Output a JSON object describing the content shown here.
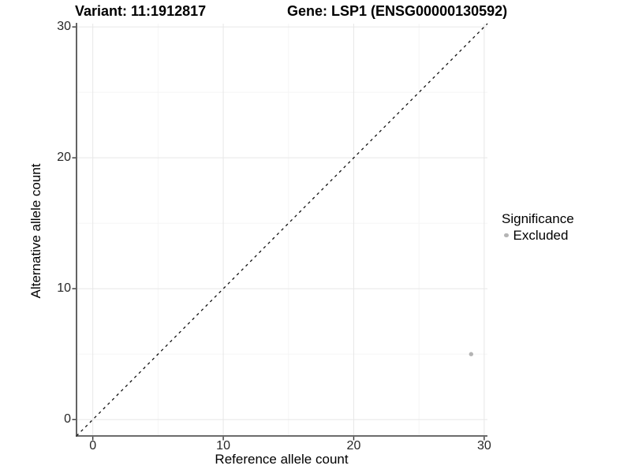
{
  "chart_data": {
    "type": "scatter",
    "title_left": "Variant: 11:1912817",
    "title_right": "Gene: LSP1 (ENSG00000130592)",
    "xlabel": "Reference allele count",
    "ylabel": "Alternative allele count",
    "xlim": [
      -1.25,
      30.25
    ],
    "ylim": [
      -1.25,
      30.25
    ],
    "x_ticks": [
      0,
      10,
      20,
      30
    ],
    "y_ticks": [
      0,
      10,
      20,
      30
    ],
    "x_minor_ticks": [
      5,
      15,
      25
    ],
    "y_minor_ticks": [
      5,
      15,
      25
    ],
    "grid": true,
    "reference_line": {
      "type": "abline",
      "slope": 1,
      "intercept": 0,
      "style": "dashed",
      "color": "#111111"
    },
    "series": [
      {
        "name": "Excluded",
        "color": "#b4b4b4",
        "points": [
          {
            "x": 29,
            "y": 5
          }
        ]
      }
    ],
    "legend": {
      "title": "Significance",
      "position": "right",
      "items": [
        {
          "label": "Excluded",
          "color": "#b4b4b4",
          "marker": "dot-icon"
        }
      ]
    }
  },
  "colors": {
    "background": "#ffffff",
    "axis_line": "#3c3c3c",
    "tick_mark": "#343434",
    "grid_major": "#e7e7e7",
    "grid_minor": "#f5f5f5",
    "tick_text": "#262626",
    "point": "#b4b4b4"
  }
}
